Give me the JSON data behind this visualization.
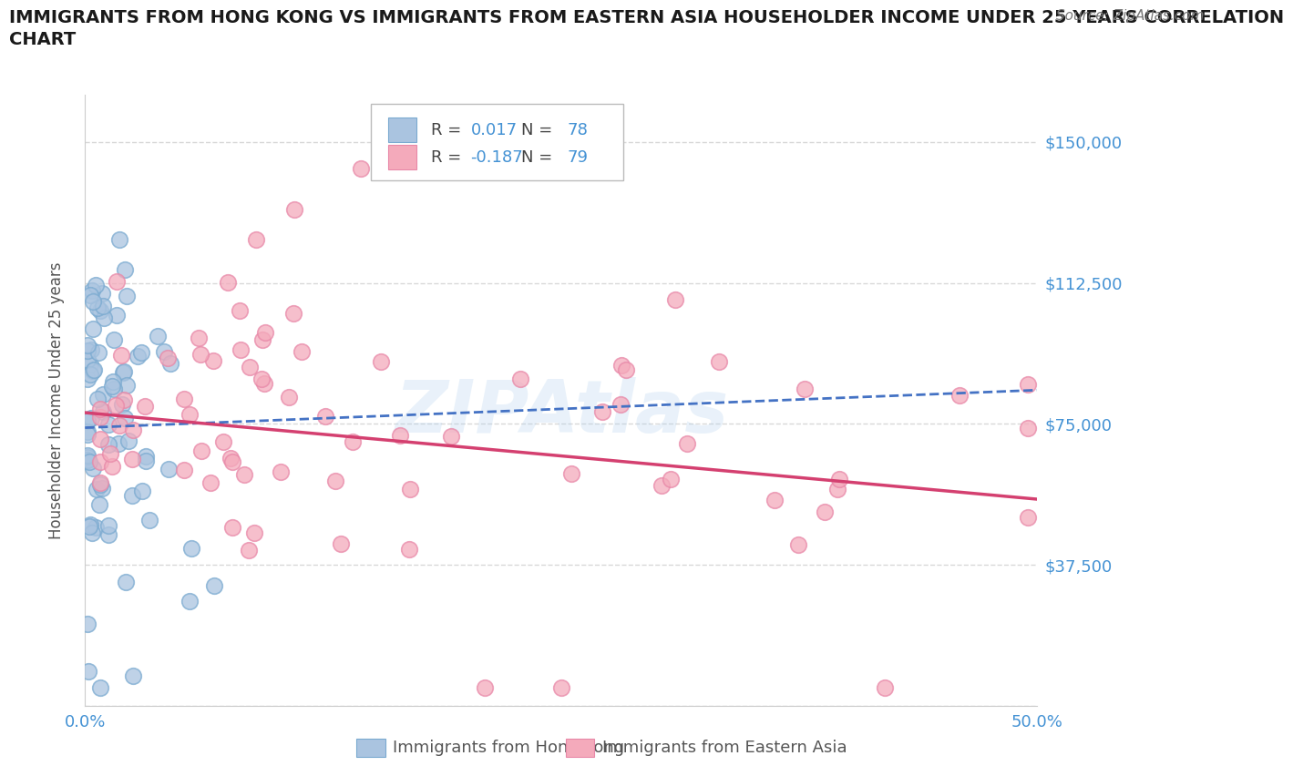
{
  "title_line1": "IMMIGRANTS FROM HONG KONG VS IMMIGRANTS FROM EASTERN ASIA HOUSEHOLDER INCOME UNDER 25 YEARS CORRELATION",
  "title_line2": "CHART",
  "source": "Source: ZipAtlas.com",
  "ylabel": "Householder Income Under 25 years",
  "xlim": [
    0,
    50
  ],
  "ylim": [
    0,
    162500
  ],
  "yticks": [
    0,
    37500,
    75000,
    112500,
    150000
  ],
  "ytick_labels": [
    "",
    "$37,500",
    "$75,000",
    "$112,500",
    "$150,000"
  ],
  "xtick_labels": [
    "0.0%",
    "",
    "",
    "",
    "",
    "50.0%"
  ],
  "hk_R": 0.017,
  "hk_N": 78,
  "ea_R": -0.187,
  "ea_N": 79,
  "hk_color": "#aac4e0",
  "ea_color": "#f4aabb",
  "hk_edge_color": "#7aaad0",
  "ea_edge_color": "#e888a8",
  "hk_trendline_color": "#4472c4",
  "ea_trendline_color": "#d44070",
  "legend_label_hk": "Immigrants from Hong Kong",
  "legend_label_ea": "Immigrants from Eastern Asia",
  "watermark": "ZIPAtlas",
  "watermark_color": "#b0d0ee",
  "bg_color": "#ffffff",
  "grid_color": "#d8d8d8",
  "axis_label_color": "#4492d4",
  "text_color": "#555555",
  "hk_trend_y0": 74000,
  "hk_trend_y50": 84000,
  "ea_trend_y0": 78000,
  "ea_trend_y50": 55000
}
